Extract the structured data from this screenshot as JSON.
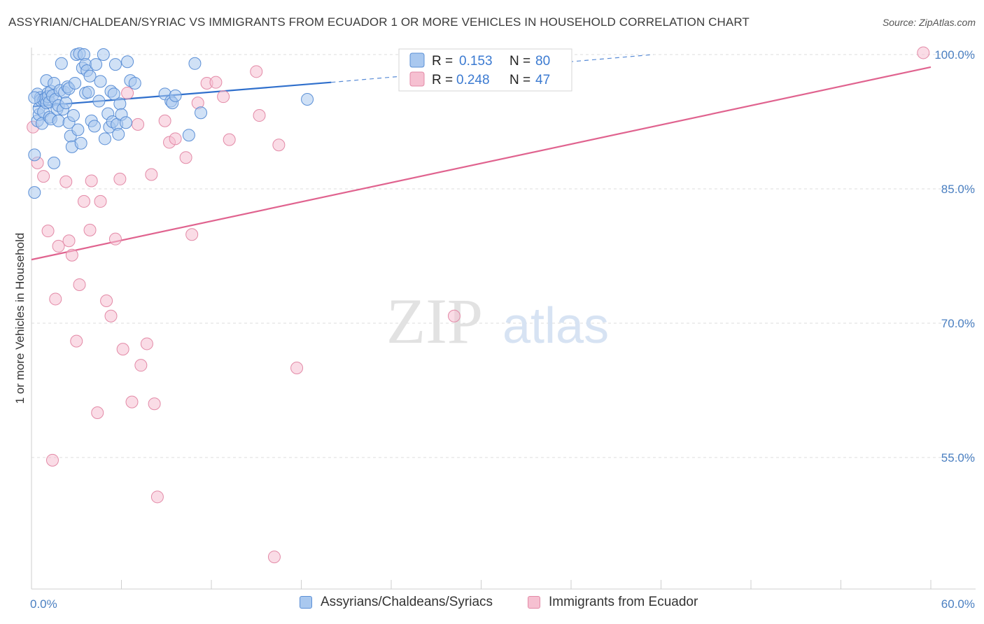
{
  "title": "ASSYRIAN/CHALDEAN/SYRIAC VS IMMIGRANTS FROM ECUADOR 1 OR MORE VEHICLES IN HOUSEHOLD CORRELATION CHART",
  "source": "Source: ZipAtlas.com",
  "watermark": {
    "zip": "ZIP",
    "atlas": "atlas"
  },
  "legend_top": [
    {
      "r_label": "R =",
      "r_value": "0.153",
      "n_label": "N =",
      "n_value": "80"
    },
    {
      "r_label": "R =",
      "r_value": "0.248",
      "n_label": "N =",
      "n_value": "47"
    }
  ],
  "legend_bottom": [
    "Assyrians/Chaldeans/Syriacs",
    "Immigrants from Ecuador"
  ],
  "chart_data": {
    "type": "scatter",
    "title": "ASSYRIAN/CHALDEAN/SYRIAC VS IMMIGRANTS FROM ECUADOR 1 OR MORE VEHICLES IN HOUSEHOLD CORRELATION CHART",
    "xlabel": "",
    "ylabel": "1 or more Vehicles in Household",
    "xlim": [
      0,
      60
    ],
    "ylim": [
      38.5,
      101.5
    ],
    "x_tick_labels": [
      "0.0%",
      "60.0%"
    ],
    "y_ticks": [
      55,
      70,
      85,
      100
    ],
    "y_tick_labels": [
      "55.0%",
      "70.0%",
      "85.0%",
      "100.0%"
    ],
    "grid": true,
    "colors": {
      "blue_fill": "#a9c8ef",
      "blue_stroke": "#5b8fd6",
      "blue_line": "#2f6fcc",
      "pink_fill": "#f6c0d1",
      "pink_stroke": "#e38aa7",
      "pink_line": "#e0638f"
    },
    "series": [
      {
        "name": "Assyrians/Chaldeans/Syriacs",
        "r": 0.153,
        "n": 80,
        "trend": {
          "x0": 0.1,
          "y0": 94.2,
          "x1": 20.0,
          "y1": 96.9,
          "dash_x1": 41.5,
          "dash_y1": 100.0
        },
        "points": [
          [
            0.2,
            88.8
          ],
          [
            0.2,
            84.6
          ],
          [
            0.4,
            92.6
          ],
          [
            0.4,
            95.6
          ],
          [
            0.5,
            93.3
          ],
          [
            0.5,
            94.0
          ],
          [
            0.6,
            95.2
          ],
          [
            0.6,
            94.9
          ],
          [
            0.7,
            92.3
          ],
          [
            0.8,
            93.6
          ],
          [
            0.8,
            94.9
          ],
          [
            0.9,
            95.1
          ],
          [
            1.0,
            97.1
          ],
          [
            1.0,
            94.6
          ],
          [
            1.1,
            95.7
          ],
          [
            1.1,
            95.3
          ],
          [
            1.2,
            93.0
          ],
          [
            1.2,
            94.7
          ],
          [
            1.3,
            92.8
          ],
          [
            1.3,
            95.9
          ],
          [
            1.4,
            95.4
          ],
          [
            1.5,
            96.8
          ],
          [
            1.5,
            87.9
          ],
          [
            1.6,
            95.0
          ],
          [
            1.7,
            93.9
          ],
          [
            1.8,
            94.3
          ],
          [
            1.8,
            92.6
          ],
          [
            1.9,
            96.0
          ],
          [
            2.0,
            99.0
          ],
          [
            2.1,
            93.9
          ],
          [
            2.2,
            95.8
          ],
          [
            2.3,
            94.6
          ],
          [
            2.4,
            96.4
          ],
          [
            2.5,
            96.2
          ],
          [
            2.5,
            92.4
          ],
          [
            2.6,
            90.9
          ],
          [
            2.7,
            89.7
          ],
          [
            2.8,
            93.2
          ],
          [
            2.9,
            96.8
          ],
          [
            3.0,
            100.0
          ],
          [
            3.1,
            91.6
          ],
          [
            3.2,
            100.1
          ],
          [
            3.3,
            90.1
          ],
          [
            3.4,
            98.5
          ],
          [
            3.5,
            100.0
          ],
          [
            3.6,
            98.9
          ],
          [
            3.6,
            95.7
          ],
          [
            3.7,
            98.2
          ],
          [
            3.8,
            95.8
          ],
          [
            3.9,
            97.6
          ],
          [
            4.0,
            92.6
          ],
          [
            4.2,
            92.0
          ],
          [
            4.3,
            98.9
          ],
          [
            4.5,
            94.8
          ],
          [
            4.6,
            97.0
          ],
          [
            4.8,
            100.0
          ],
          [
            4.9,
            90.6
          ],
          [
            5.1,
            93.4
          ],
          [
            5.2,
            91.9
          ],
          [
            5.3,
            95.9
          ],
          [
            5.4,
            92.5
          ],
          [
            5.5,
            95.6
          ],
          [
            5.6,
            98.9
          ],
          [
            5.7,
            92.2
          ],
          [
            5.8,
            91.1
          ],
          [
            5.9,
            94.5
          ],
          [
            6.0,
            93.3
          ],
          [
            6.4,
            99.2
          ],
          [
            6.6,
            97.1
          ],
          [
            6.9,
            96.8
          ],
          [
            8.9,
            95.6
          ],
          [
            9.3,
            94.8
          ],
          [
            9.4,
            94.6
          ],
          [
            9.6,
            95.4
          ],
          [
            10.5,
            91.0
          ],
          [
            10.9,
            99.0
          ],
          [
            11.3,
            93.5
          ],
          [
            18.4,
            95.0
          ],
          [
            0.2,
            95.2
          ],
          [
            6.3,
            92.4
          ]
        ]
      },
      {
        "name": "Immigrants from Ecuador",
        "r": 0.248,
        "n": 47,
        "trend": {
          "x0": 0.0,
          "y0": 77.1,
          "x1": 60.0,
          "y1": 98.6
        },
        "points": [
          [
            0.1,
            91.9
          ],
          [
            0.4,
            87.9
          ],
          [
            0.8,
            86.4
          ],
          [
            1.1,
            80.3
          ],
          [
            1.4,
            54.7
          ],
          [
            1.6,
            72.7
          ],
          [
            1.8,
            78.6
          ],
          [
            2.3,
            85.8
          ],
          [
            2.5,
            79.2
          ],
          [
            2.7,
            77.6
          ],
          [
            3.0,
            68.0
          ],
          [
            3.2,
            74.3
          ],
          [
            3.5,
            83.6
          ],
          [
            3.9,
            80.4
          ],
          [
            4.0,
            85.9
          ],
          [
            4.4,
            60.0
          ],
          [
            4.6,
            83.6
          ],
          [
            5.0,
            72.5
          ],
          [
            5.3,
            70.8
          ],
          [
            5.6,
            79.4
          ],
          [
            5.9,
            86.1
          ],
          [
            6.1,
            67.1
          ],
          [
            6.4,
            95.7
          ],
          [
            6.7,
            61.2
          ],
          [
            7.1,
            92.2
          ],
          [
            7.3,
            65.3
          ],
          [
            7.7,
            67.7
          ],
          [
            8.0,
            86.6
          ],
          [
            8.2,
            61.0
          ],
          [
            8.4,
            50.6
          ],
          [
            8.9,
            92.6
          ],
          [
            9.2,
            90.2
          ],
          [
            9.6,
            90.6
          ],
          [
            10.3,
            88.5
          ],
          [
            10.7,
            79.9
          ],
          [
            11.1,
            94.6
          ],
          [
            11.7,
            96.8
          ],
          [
            12.3,
            96.9
          ],
          [
            12.8,
            95.3
          ],
          [
            13.2,
            90.5
          ],
          [
            15.0,
            98.1
          ],
          [
            15.2,
            93.2
          ],
          [
            16.2,
            43.9
          ],
          [
            16.5,
            89.9
          ],
          [
            17.7,
            65.0
          ],
          [
            28.2,
            70.8
          ],
          [
            59.5,
            100.2
          ]
        ]
      }
    ]
  }
}
